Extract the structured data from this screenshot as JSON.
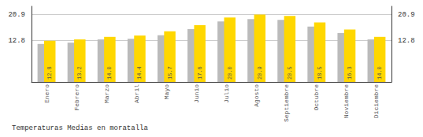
{
  "chart_data": {
    "type": "bar",
    "title": "Temperaturas Medias en moratalla",
    "categories": [
      "Enero",
      "Febrero",
      "Marzo",
      "Abril",
      "Mayo",
      "Junio",
      "Julio",
      "Agosto",
      "Septiembre",
      "Octubre",
      "Noviembre",
      "Diciembre"
    ],
    "series": [
      {
        "color": "#BBBBBB",
        "values": [
          11.8,
          12.2,
          13.2,
          13.4,
          14.5,
          16.4,
          18.8,
          19.5,
          19.3,
          17.2,
          15.2,
          13.2
        ]
      },
      {
        "color": "#FFD700",
        "values": [
          12.8,
          13.2,
          14.0,
          14.4,
          15.7,
          17.6,
          20.0,
          20.9,
          20.5,
          18.5,
          16.3,
          14.0
        ],
        "value_labels": [
          "12.8",
          "13.2",
          "14.0",
          "14.4",
          "15.7",
          "17.6",
          "20.0",
          "20.9",
          "20.5",
          "18.5",
          "16.3",
          "14.0"
        ],
        "data_labels": true
      }
    ],
    "ylim": [
      0.0,
      23.5
    ],
    "yticks": [
      12.8,
      20.9
    ],
    "y2lim": [
      0.0,
      23.5
    ],
    "y2ticks": [
      12.8,
      20.9
    ],
    "grid": true
  }
}
